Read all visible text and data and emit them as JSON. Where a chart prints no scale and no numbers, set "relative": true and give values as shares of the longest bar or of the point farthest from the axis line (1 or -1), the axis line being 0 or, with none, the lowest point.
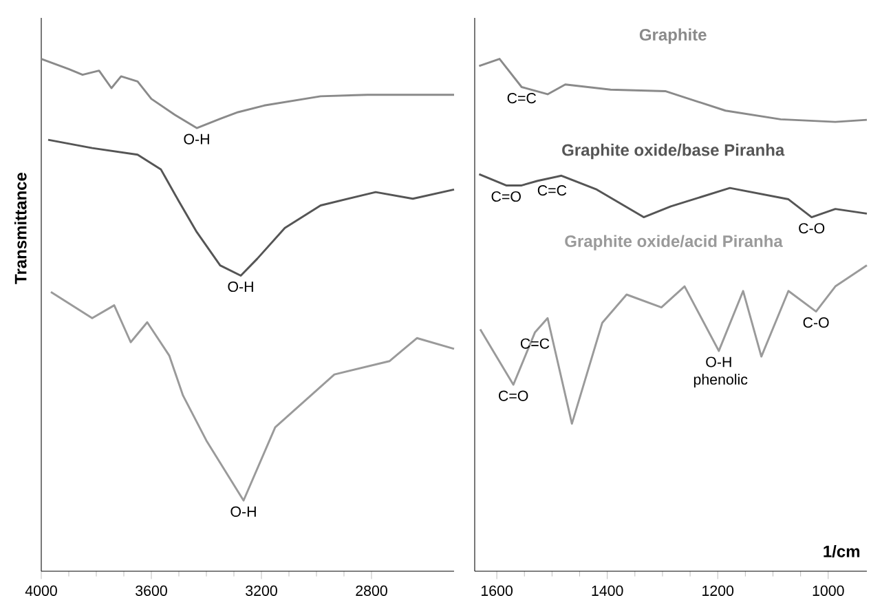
{
  "chart_data": [
    {
      "type": "line",
      "relative": true,
      "ylabel": "Transmittance",
      "xlim": [
        4000,
        2500
      ],
      "xticks": [
        4000,
        3600,
        3200,
        2800
      ],
      "tick_labels": "x",
      "marker": "none",
      "line_style": "solid",
      "annotations": [
        {
          "text": "O-H",
          "x": 3435,
          "y": 0.865
        },
        {
          "text": "O-H",
          "x": 3275,
          "y": 0.577
        },
        {
          "text": "O-H",
          "x": 3265,
          "y": 0.138
        }
      ],
      "series": [
        {
          "color": "#8a8a8a",
          "x": [
            4000,
            3900,
            3850,
            3790,
            3745,
            3710,
            3650,
            3600,
            3515,
            3435,
            3350,
            3285,
            3190,
            2985,
            2815,
            2500
          ],
          "values": [
            1.0,
            0.98,
            0.969,
            0.977,
            0.943,
            0.966,
            0.956,
            0.922,
            0.891,
            0.865,
            0.883,
            0.896,
            0.909,
            0.927,
            0.93,
            0.93
          ]
        },
        {
          "color": "#555555",
          "x": [
            3975,
            3815,
            3650,
            3565,
            3500,
            3435,
            3350,
            3275,
            3215,
            3115,
            2985,
            2785,
            2650,
            2500
          ],
          "values": [
            0.842,
            0.826,
            0.813,
            0.784,
            0.722,
            0.662,
            0.597,
            0.577,
            0.61,
            0.67,
            0.714,
            0.74,
            0.727,
            0.745
          ]
        },
        {
          "color": "#9a9a9a",
          "x": [
            3965,
            3815,
            3735,
            3675,
            3615,
            3535,
            3485,
            3400,
            3265,
            3150,
            2935,
            2735,
            2635,
            2500
          ],
          "values": [
            0.545,
            0.494,
            0.519,
            0.447,
            0.486,
            0.421,
            0.343,
            0.255,
            0.138,
            0.281,
            0.384,
            0.41,
            0.455,
            0.434
          ]
        }
      ]
    },
    {
      "type": "line",
      "relative": true,
      "xlabel": "1/cm",
      "xlim": [
        1640,
        930
      ],
      "xticks": [
        1600,
        1400,
        1200,
        1000
      ],
      "tick_labels": "x",
      "marker": "none",
      "line_style": "solid",
      "annotations": [
        {
          "text": "C=C",
          "x": 1555,
          "y": 0.945
        },
        {
          "text": "C=O",
          "x": 1583,
          "y": 0.753
        },
        {
          "text": "C=C",
          "x": 1500,
          "y": 0.765
        },
        {
          "text": "C-O",
          "x": 1030,
          "y": 0.691
        },
        {
          "text": "C=O",
          "x": 1570,
          "y": 0.364
        },
        {
          "text": "C=C",
          "x": 1531,
          "y": 0.466
        },
        {
          "text": "O-H phenolic",
          "x": 1198,
          "y": 0.43
        },
        {
          "text": "C-O",
          "x": 1022,
          "y": 0.507
        }
      ],
      "series": [
        {
          "name": "Graphite",
          "color": "#8a8a8a",
          "x": [
            1632,
            1595,
            1555,
            1508,
            1476,
            1394,
            1295,
            1186,
            1086,
            987,
            930
          ],
          "values": [
            0.986,
            1.0,
            0.945,
            0.931,
            0.95,
            0.94,
            0.937,
            0.899,
            0.882,
            0.877,
            0.881
          ]
        },
        {
          "name": "Graphite oxide/base Piranha",
          "color": "#555555",
          "x": [
            1632,
            1583,
            1555,
            1526,
            1483,
            1419,
            1334,
            1285,
            1178,
            1072,
            1030,
            987,
            930
          ],
          "values": [
            0.775,
            0.753,
            0.753,
            0.762,
            0.772,
            0.745,
            0.691,
            0.712,
            0.748,
            0.726,
            0.691,
            0.707,
            0.698
          ]
        },
        {
          "name": "Graphite oxide/acid Piranha",
          "color": "#9a9a9a",
          "x": [
            1630,
            1570,
            1531,
            1508,
            1464,
            1409,
            1365,
            1302,
            1260,
            1198,
            1154,
            1121,
            1072,
            1022,
            987,
            930
          ],
          "values": [
            0.472,
            0.364,
            0.466,
            0.494,
            0.288,
            0.485,
            0.54,
            0.515,
            0.556,
            0.43,
            0.547,
            0.419,
            0.547,
            0.507,
            0.556,
            0.597
          ]
        }
      ]
    }
  ]
}
